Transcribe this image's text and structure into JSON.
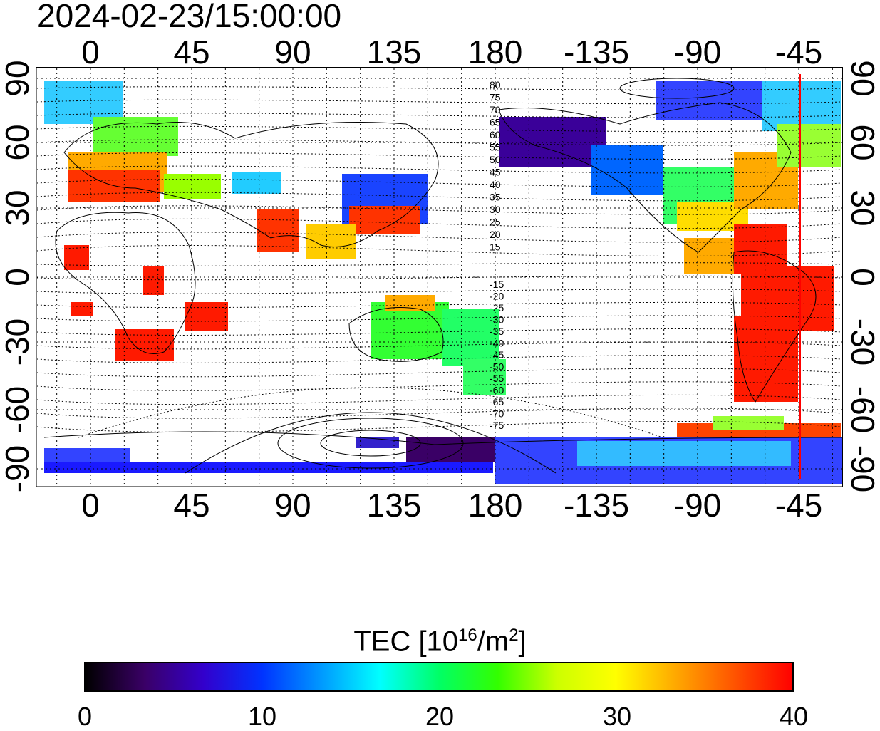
{
  "header": {
    "timestamp": "2024-02-23/15:00:00"
  },
  "map": {
    "type": "world TEC map (longitude/latitude grid)",
    "lon_ticks": [
      "0",
      "45",
      "90",
      "135",
      "180",
      "-135",
      "-90",
      "-45"
    ],
    "lat_ticks_left": [
      "90",
      "60",
      "30",
      "0",
      "-30",
      "-60",
      "-90"
    ],
    "lat_ticks_right": [
      "90",
      "60",
      "30",
      "0",
      "-30",
      "-60",
      "-90"
    ],
    "magnetic_contour_labels_north": [
      "80",
      "75",
      "70",
      "65",
      "60",
      "55",
      "50",
      "45",
      "40",
      "35",
      "30",
      "25",
      "20",
      "15"
    ],
    "magnetic_contour_labels_south": [
      "-15",
      "-20",
      "-25",
      "-30",
      "-35",
      "-40",
      "-45",
      "-50",
      "-55",
      "-60",
      "-65",
      "-70",
      "-75"
    ],
    "marker_line": {
      "longitude": -45,
      "color": "#ff0000"
    },
    "grid": true
  },
  "colorbar": {
    "title_prefix": "TEC  [10",
    "title_exp1": "16",
    "title_mid": "/m",
    "title_exp2": "2",
    "title_suffix": "]",
    "ticks": [
      "0",
      "10",
      "20",
      "30",
      "40"
    ],
    "range": [
      0,
      40
    ],
    "colors": [
      "#000000",
      "#3a0066",
      "#3300cc",
      "#0033ff",
      "#0099ff",
      "#00ffff",
      "#00ff66",
      "#33ff00",
      "#ccff00",
      "#ffff00",
      "#ffaa00",
      "#ff5500",
      "#ff0000"
    ]
  }
}
